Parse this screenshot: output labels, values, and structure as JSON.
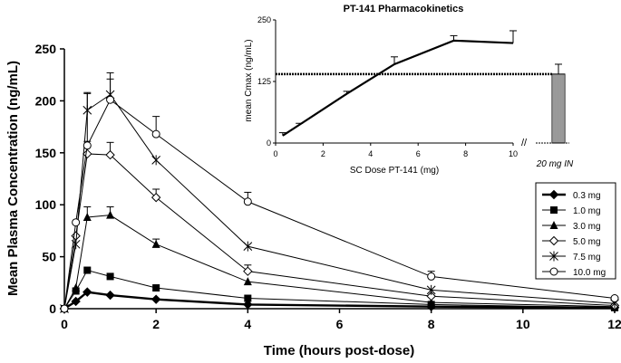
{
  "chart_data": [
    {
      "type": "line",
      "title": "",
      "xlabel": "Time (hours post-dose)",
      "ylabel": "Mean Plasma Concentration (ng/mL)",
      "xlim": [
        0,
        12
      ],
      "ylim": [
        0,
        250
      ],
      "xticks": [
        0,
        2,
        4,
        6,
        8,
        10,
        12
      ],
      "yticks": [
        0,
        50,
        100,
        150,
        200,
        250
      ],
      "grid": false,
      "legend_position": "right",
      "series": [
        {
          "name": "0.3 mg",
          "marker": "filled-diamond",
          "line_width": 2.4,
          "x": [
            0,
            0.25,
            0.5,
            1,
            2,
            4,
            8,
            12
          ],
          "y": [
            0,
            7,
            16,
            13,
            9,
            4,
            2,
            1
          ],
          "err": [
            0,
            0,
            0,
            0,
            0,
            0,
            0,
            0
          ]
        },
        {
          "name": "1.0 mg",
          "marker": "filled-square",
          "line_width": 1,
          "x": [
            0,
            0.25,
            0.5,
            1,
            2,
            4,
            8,
            12
          ],
          "y": [
            0,
            17,
            37,
            31,
            20,
            10,
            4,
            1
          ],
          "err": [
            0,
            0,
            0,
            0,
            0,
            0,
            0,
            0
          ]
        },
        {
          "name": "3.0 mg",
          "marker": "filled-triangle",
          "line_width": 1,
          "x": [
            0,
            0.25,
            0.5,
            1,
            2,
            4,
            8,
            12
          ],
          "y": [
            0,
            20,
            88,
            90,
            62,
            26,
            6,
            2
          ],
          "err": [
            0,
            0,
            10,
            8,
            5,
            0,
            0,
            0
          ]
        },
        {
          "name": "5.0 mg",
          "marker": "open-diamond",
          "line_width": 1,
          "x": [
            0,
            0.25,
            0.5,
            1,
            2,
            4,
            8,
            12
          ],
          "y": [
            0,
            70,
            149,
            148,
            107,
            36,
            12,
            3
          ],
          "err": [
            0,
            0,
            12,
            12,
            8,
            6,
            0,
            0
          ]
        },
        {
          "name": "7.5 mg",
          "marker": "star",
          "line_width": 1,
          "x": [
            0,
            0.25,
            0.5,
            1,
            2,
            4,
            8,
            12
          ],
          "y": [
            0,
            62,
            191,
            206,
            143,
            60,
            18,
            5
          ],
          "err": [
            0,
            0,
            17,
            15,
            0,
            0,
            0,
            0
          ]
        },
        {
          "name": "10.0 mg",
          "marker": "open-circle",
          "line_width": 1,
          "x": [
            0,
            0.25,
            0.5,
            1,
            2,
            4,
            8,
            12
          ],
          "y": [
            0,
            83,
            157,
            201,
            168,
            103,
            31,
            10
          ],
          "err": [
            0,
            0,
            50,
            26,
            17,
            9,
            5,
            0
          ]
        }
      ]
    },
    {
      "type": "line",
      "title": "PT-141 Pharmacokinetics",
      "xlabel": "SC Dose PT-141 (mg)",
      "ylabel": "mean Cmax (ng/mL)",
      "xlim": [
        0,
        10
      ],
      "ylim": [
        0,
        250
      ],
      "xticks": [
        0,
        2,
        4,
        6,
        8,
        10
      ],
      "yticks": [
        0,
        125,
        250
      ],
      "grid": false,
      "series": [
        {
          "name": "",
          "x": [
            0.3,
            1,
            3,
            5,
            7.5,
            10
          ],
          "y": [
            15,
            37,
            100,
            160,
            208,
            203
          ],
          "err": [
            6,
            3,
            5,
            15,
            10,
            25
          ]
        }
      ],
      "reference_line": {
        "y": 140,
        "style": "dotted"
      },
      "extra_bar": {
        "label": "20 mg IN",
        "value": 140,
        "err": 20
      }
    }
  ]
}
